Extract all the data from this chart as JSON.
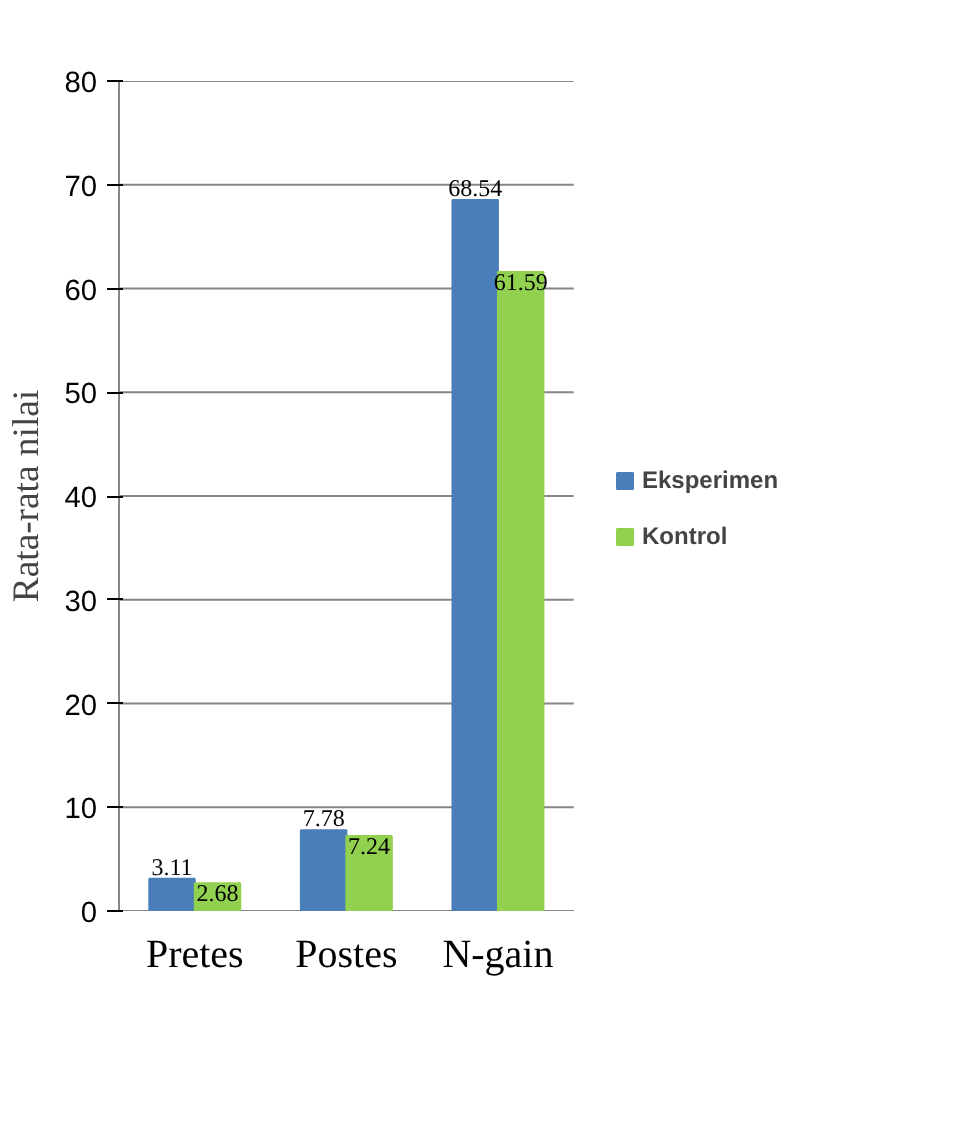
{
  "chart_data": {
    "type": "bar",
    "ylabel": "Rata-rata nilai",
    "categories": [
      "Pretes",
      "Postes",
      "N-gain"
    ],
    "series": [
      {
        "name": "Eksperimen",
        "color": "#4a7ebb",
        "values": [
          3.11,
          7.78,
          68.54
        ]
      },
      {
        "name": "Kontrol",
        "color": "#92d050",
        "values": [
          2.68,
          7.24,
          61.59
        ]
      }
    ],
    "ylim": [
      0,
      80
    ],
    "yticks": [
      0,
      10,
      20,
      30,
      40,
      50,
      60,
      70,
      80
    ],
    "grid": "y",
    "legend": "right",
    "data_labels": true
  }
}
